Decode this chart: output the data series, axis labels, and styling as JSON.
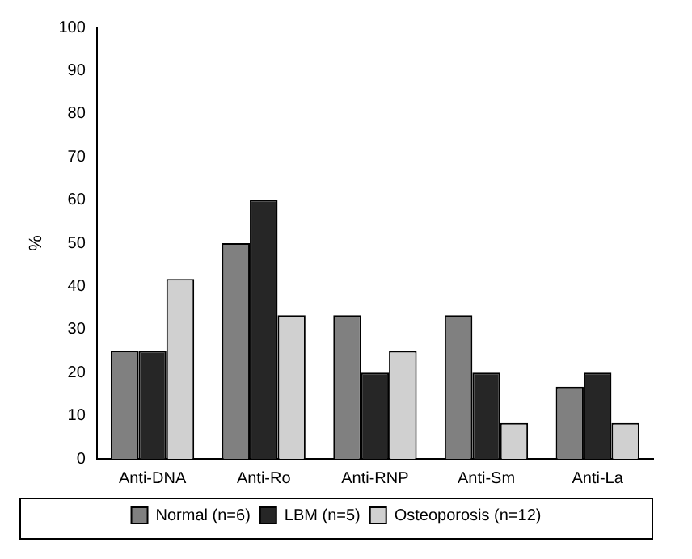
{
  "chart_data": {
    "type": "bar",
    "ylabel": "%",
    "categories": [
      "Anti-DNA",
      "Anti-Ro",
      "Anti-RNP",
      "Anti-Sm",
      "Anti-La"
    ],
    "series": [
      {
        "name": "Normal (n=6)",
        "color": "#808080",
        "values": [
          25,
          50,
          33.3,
          33.3,
          16.7
        ]
      },
      {
        "name": "LBM (n=5)",
        "color": "#262626",
        "values": [
          25,
          60,
          20,
          20,
          20
        ]
      },
      {
        "name": "Osteoporosis (n=12)",
        "color": "#d0d0d0",
        "values": [
          41.7,
          33.3,
          25,
          8.3,
          8.3
        ]
      }
    ],
    "ylim": [
      0,
      100
    ],
    "yticks": [
      0,
      10,
      20,
      30,
      40,
      50,
      60,
      70,
      80,
      90,
      100
    ],
    "grid": false,
    "legend": "bottom"
  }
}
